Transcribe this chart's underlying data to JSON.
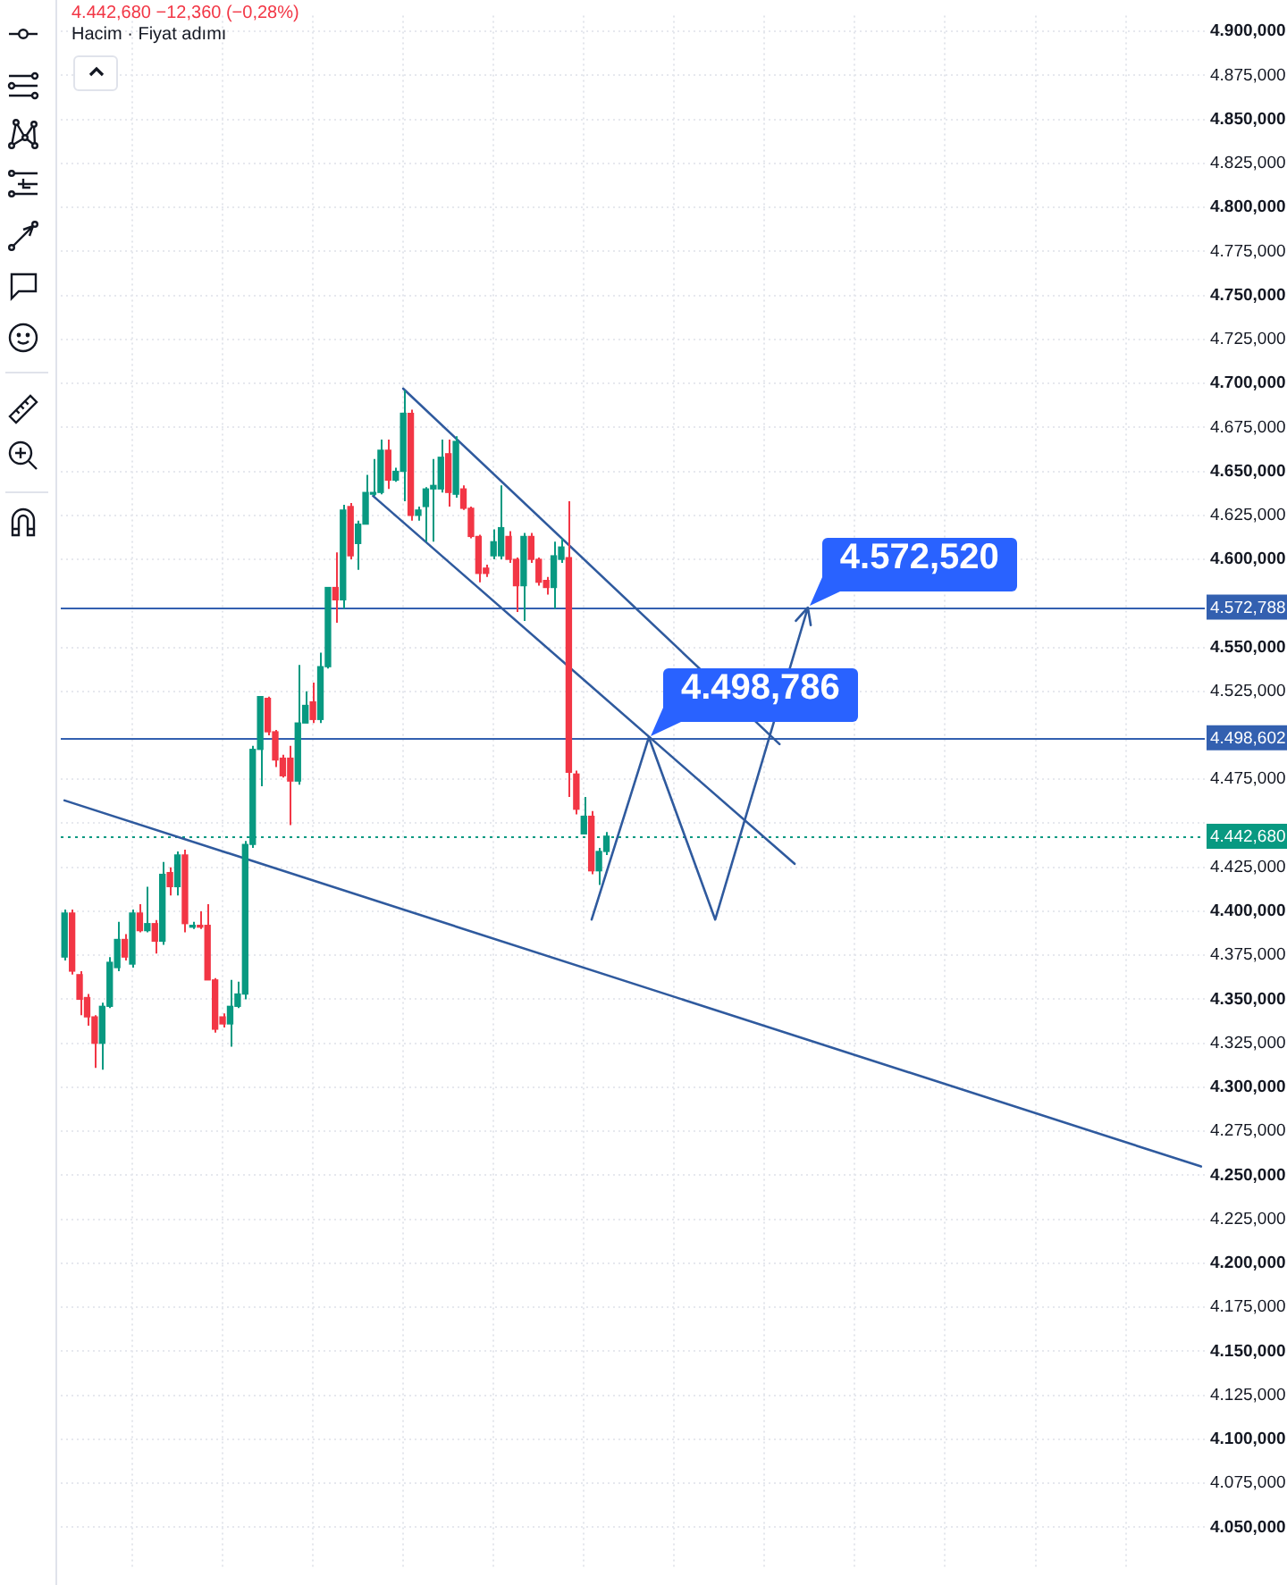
{
  "chart_data": {
    "type": "candlestick",
    "title": "4.442,680 −12,360 (−0,28%)",
    "subtitle": "Hacim · Fiyat adımı",
    "categories": [
      null,
      null,
      null,
      null,
      null,
      null,
      null,
      null,
      null,
      null,
      null,
      null,
      null,
      null,
      null,
      null,
      null,
      null,
      null,
      null,
      null,
      null,
      null,
      null,
      null,
      null,
      null,
      null,
      null,
      null,
      null,
      null,
      null,
      null,
      null,
      null,
      null,
      null,
      null,
      null,
      null,
      null,
      null,
      null,
      null,
      null,
      null,
      null,
      null,
      null,
      null,
      null,
      null,
      null,
      null,
      null,
      null,
      null,
      null,
      null,
      null,
      null,
      null,
      null,
      null,
      null,
      null,
      null,
      null,
      null,
      null,
      null,
      null,
      null,
      null,
      null,
      null,
      null,
      null,
      null,
      null,
      null,
      null,
      null,
      null,
      null,
      null,
      null,
      null,
      null,
      null,
      null,
      null,
      null,
      null,
      null,
      null,
      null,
      null,
      null,
      null,
      null,
      null,
      null,
      null,
      null,
      null,
      null,
      null,
      null,
      null,
      null,
      null,
      null,
      null,
      null,
      null,
      null,
      null,
      null,
      null,
      null,
      null,
      null,
      null,
      null,
      null,
      null,
      null,
      null,
      null,
      null,
      null,
      null,
      null,
      null,
      null,
      null,
      null,
      null,
      null,
      null,
      null,
      null,
      null,
      null,
      null,
      null,
      null,
      null,
      null,
      null
    ],
    "ohlc": [
      [
        4374,
        4401,
        4372,
        4399
      ],
      [
        4399,
        4401,
        4364,
        4366
      ],
      [
        4364,
        4366,
        4341,
        4350
      ],
      [
        4351,
        4353,
        4335,
        4340
      ],
      [
        4340,
        4341,
        4311,
        4325
      ],
      [
        4325,
        4348,
        4310,
        4346
      ],
      [
        4346,
        4374,
        4345,
        4371
      ],
      [
        4368,
        4394,
        4366,
        4384
      ],
      [
        4384,
        4387,
        4372,
        4374
      ],
      [
        4370,
        4401,
        4368,
        4399
      ],
      [
        4399,
        4404,
        4388,
        4389
      ],
      [
        4389,
        4414,
        4388,
        4393
      ],
      [
        4393,
        4395,
        4376,
        4383
      ],
      [
        4383,
        4428,
        4381,
        4421
      ],
      [
        4422,
        4425,
        4409,
        4414
      ],
      [
        4414,
        4434,
        4409,
        4432
      ],
      [
        4432,
        4435,
        4388,
        4393
      ],
      [
        4391,
        4394,
        4390,
        4392
      ],
      [
        4392,
        4400,
        4390,
        4391
      ],
      [
        4392,
        4404,
        4361,
        4361
      ],
      [
        4361,
        4362,
        4331,
        4333
      ],
      [
        4340,
        4342,
        4334,
        4336
      ],
      [
        4336,
        4361,
        4323,
        4346
      ],
      [
        4346,
        4360,
        4345,
        4353
      ],
      [
        4353,
        4440,
        4350,
        4438
      ],
      [
        4438,
        4494,
        4436,
        4492
      ],
      [
        4492,
        4522,
        4471,
        4522
      ],
      [
        4521,
        4522,
        4500,
        4502
      ],
      [
        4502,
        4503,
        4482,
        4486
      ],
      [
        4487,
        4489,
        4476,
        4477
      ],
      [
        4487,
        4494,
        4449,
        4474
      ],
      [
        4474,
        4540,
        4472,
        4507
      ],
      [
        4507,
        4525,
        4507,
        4517
      ],
      [
        4519,
        4530,
        4507,
        4509
      ],
      [
        4509,
        4547,
        4507,
        4539
      ],
      [
        4539,
        4584,
        4538,
        4584
      ],
      [
        4584,
        4604,
        4564,
        4577
      ],
      [
        4577,
        4631,
        4572,
        4628
      ],
      [
        4630,
        4632,
        4600,
        4602
      ],
      [
        4609,
        4622,
        4594,
        4620
      ],
      [
        4620,
        4648,
        4620,
        4638
      ],
      [
        4637,
        4657,
        4636,
        4638
      ],
      [
        4638,
        4668,
        4637,
        4662
      ],
      [
        4662,
        4668,
        4640,
        4645
      ],
      [
        4645,
        4652,
        4644,
        4650
      ],
      [
        4650,
        4696,
        4633,
        4683
      ],
      [
        4683,
        4685,
        4622,
        4625
      ],
      [
        4625,
        4630,
        4622,
        4628
      ],
      [
        4630,
        4641,
        4610,
        4640
      ],
      [
        4640,
        4657,
        4610,
        4642
      ],
      [
        4640,
        4668,
        4638,
        4658
      ],
      [
        4660,
        4668,
        4630,
        4638
      ],
      [
        4637,
        4670,
        4635,
        4667
      ],
      [
        4640,
        4642,
        4628,
        4629
      ],
      [
        4629,
        4630,
        4612,
        4613
      ],
      [
        4613,
        4614,
        4587,
        4592
      ],
      [
        4595,
        4597,
        4590,
        4592
      ],
      [
        4602,
        4617,
        4600,
        4610
      ],
      [
        4602,
        4642,
        4600,
        4618
      ],
      [
        4613,
        4616,
        4598,
        4600
      ],
      [
        4600,
        4601,
        4570,
        4585
      ],
      [
        4585,
        4615,
        4565,
        4613
      ],
      [
        4613,
        4615,
        4598,
        4600
      ],
      [
        4600,
        4601,
        4585,
        4587
      ],
      [
        4588,
        4590,
        4580,
        4584
      ],
      [
        4584,
        4610,
        4572,
        4602
      ],
      [
        4600,
        4612,
        4598,
        4607
      ],
      [
        4601,
        4633,
        4465,
        4479
      ],
      [
        4478,
        4480,
        4455,
        4458
      ],
      [
        4444,
        4465,
        4444,
        4454
      ],
      [
        4454,
        4457,
        4421,
        4423
      ],
      [
        4423,
        4436,
        4415,
        4434
      ],
      [
        4434,
        4445,
        4432,
        4442.68
      ],
      null,
      null,
      null,
      null,
      null,
      null,
      null,
      null,
      null,
      null,
      null,
      null,
      null,
      null,
      null,
      null,
      null,
      null,
      null,
      null,
      null,
      null,
      null,
      null,
      null,
      null,
      null,
      null,
      null,
      null,
      null,
      null,
      null,
      null,
      null,
      null,
      null,
      null,
      null,
      null,
      null,
      null,
      null,
      null,
      null,
      null,
      null,
      null,
      null,
      null,
      null,
      null,
      null,
      null,
      null,
      null,
      null,
      null,
      null,
      null,
      null,
      null,
      null,
      null,
      null,
      null,
      null,
      null,
      null,
      null,
      null,
      null,
      null,
      null,
      null,
      null,
      null,
      null,
      null
    ],
    "colors": [
      "#089981",
      "#f23645",
      "#f23645",
      "#f23645",
      "#f23645",
      "#089981",
      "#089981",
      "#089981",
      "#f23645",
      "#089981",
      "#f23645",
      "#089981",
      "#f23645",
      "#089981",
      "#f23645",
      "#089981",
      "#f23645",
      "#089981",
      "#f23645",
      "#f23645",
      "#f23645",
      "#f23645",
      "#089981",
      "#089981",
      "#089981",
      "#089981",
      "#089981",
      "#f23645",
      "#f23645",
      "#f23645",
      "#f23645",
      "#089981",
      "#089981",
      "#f23645",
      "#089981",
      "#089981",
      "#f23645",
      "#089981",
      "#f23645",
      "#089981",
      "#089981",
      "#089981",
      "#089981",
      "#f23645",
      "#089981",
      "#089981",
      "#f23645",
      "#089981",
      "#089981",
      "#089981",
      "#089981",
      "#f23645",
      "#089981",
      "#f23645",
      "#f23645",
      "#f23645",
      "#f23645",
      "#089981",
      "#089981",
      "#f23645",
      "#f23645",
      "#089981",
      "#f23645",
      "#f23645",
      "#f23645",
      "#089981",
      "#089981",
      "#f23645",
      "#f23645",
      "#089981",
      "#f23645",
      "#089981",
      "#089981",
      null,
      null,
      null,
      null,
      null,
      null,
      null,
      null,
      null,
      null,
      null,
      null,
      null,
      null,
      null,
      null,
      null,
      null,
      null,
      null,
      null,
      null,
      null,
      null,
      null,
      null,
      null,
      null,
      null,
      null,
      null,
      null,
      null,
      null,
      null,
      null,
      null,
      null,
      null,
      null,
      null,
      null,
      null,
      null,
      null,
      null,
      null,
      null,
      null,
      null,
      null,
      null,
      null,
      null,
      null,
      null,
      null,
      null,
      null,
      null,
      null,
      null,
      null,
      null,
      null,
      null,
      null,
      null,
      null,
      null,
      null,
      null,
      null,
      null,
      null,
      null,
      null,
      null,
      null
    ],
    "series": [
      {
        "type": "line",
        "color": "#2f5a9e",
        "values": [
          4463,
          null,
          null,
          null,
          null,
          null,
          null,
          null,
          null,
          null,
          null,
          null,
          null,
          null,
          null,
          null,
          null,
          null,
          null,
          null,
          null,
          null,
          null,
          null,
          null,
          null,
          null,
          null,
          null,
          null,
          null,
          null,
          null,
          null,
          null,
          null,
          null,
          null,
          null,
          null,
          null,
          null,
          null,
          null,
          null,
          null,
          null,
          null,
          null,
          null,
          null,
          null,
          null,
          null,
          null,
          null,
          null,
          null,
          null,
          null,
          null,
          null,
          null,
          null,
          null,
          null,
          null,
          null,
          null,
          null,
          null,
          null,
          null,
          null,
          null,
          null,
          null,
          null,
          null,
          null,
          null,
          null,
          null,
          null,
          null,
          null,
          null,
          null,
          null,
          null,
          null,
          null,
          null,
          null,
          null,
          null,
          null,
          null,
          null,
          null,
          null,
          null,
          null,
          null,
          null,
          null,
          null,
          null,
          null,
          null,
          null,
          null,
          null,
          null,
          null,
          null,
          null,
          null,
          null,
          null,
          null,
          null,
          null,
          null,
          null,
          null,
          null,
          null,
          null,
          null,
          null,
          null,
          null,
          null,
          null,
          null,
          null,
          null,
          null,
          null,
          null,
          null,
          null,
          null,
          null,
          null,
          null,
          null,
          null,
          null,
          null,
          4255
        ]
      },
      {
        "type": "line",
        "color": "#2f5a9e",
        "values": [
          null,
          null,
          null,
          null,
          null,
          null,
          null,
          null,
          null,
          null,
          null,
          null,
          null,
          null,
          null,
          null,
          null,
          null,
          null,
          null,
          null,
          null,
          null,
          null,
          null,
          null,
          null,
          null,
          null,
          null,
          null,
          null,
          null,
          null,
          null,
          null,
          null,
          null,
          null,
          null,
          null,
          null,
          null,
          null,
          null,
          4697,
          null,
          null,
          null,
          null,
          null,
          null,
          null,
          null,
          null,
          null,
          null,
          null,
          null,
          null,
          null,
          null,
          null,
          null,
          null,
          null,
          null,
          null,
          null,
          null,
          null,
          null,
          null,
          null,
          null,
          null,
          null,
          null,
          null,
          null,
          null,
          null,
          null,
          null,
          null,
          null,
          null,
          null,
          null,
          null,
          null,
          null,
          null,
          null,
          null,
          4495,
          null,
          null,
          null,
          null,
          null,
          null,
          null,
          null,
          null,
          null,
          null,
          null,
          null,
          null,
          null,
          null,
          null,
          null,
          null,
          null,
          null,
          null,
          null,
          null,
          null,
          null,
          null,
          null,
          null,
          null,
          null,
          null,
          null,
          null,
          null,
          null,
          null,
          null,
          null,
          null,
          null,
          null,
          null,
          null,
          null,
          null,
          null,
          null,
          null,
          null,
          null,
          null,
          null,
          null,
          null,
          null
        ]
      },
      {
        "type": "line",
        "color": "#2f5a9e",
        "values": [
          null,
          null,
          null,
          null,
          null,
          null,
          null,
          null,
          null,
          null,
          null,
          null,
          null,
          null,
          null,
          null,
          null,
          null,
          null,
          null,
          null,
          null,
          null,
          null,
          null,
          null,
          null,
          null,
          null,
          null,
          null,
          null,
          null,
          null,
          null,
          null,
          null,
          null,
          null,
          null,
          null,
          4636,
          null,
          null,
          null,
          null,
          null,
          null,
          null,
          null,
          null,
          null,
          null,
          null,
          null,
          null,
          null,
          null,
          null,
          null,
          null,
          null,
          null,
          null,
          null,
          null,
          null,
          null,
          null,
          null,
          null,
          null,
          null,
          null,
          null,
          null,
          null,
          null,
          null,
          null,
          null,
          null,
          null,
          null,
          null,
          null,
          null,
          null,
          null,
          null,
          null,
          null,
          null,
          null,
          null,
          null,
          null,
          4427,
          null,
          null,
          null,
          null,
          null,
          null,
          null,
          null,
          null,
          null,
          null,
          null,
          null,
          null,
          null,
          null,
          null,
          null,
          null,
          null,
          null,
          null,
          null,
          null,
          null,
          null,
          null,
          null,
          null,
          null,
          null,
          null,
          null,
          null,
          null,
          null,
          null,
          null,
          null,
          null,
          null,
          null,
          null,
          null,
          null,
          null,
          null,
          null,
          null,
          null,
          null,
          null,
          null,
          null
        ]
      }
    ],
    "ylim": [
      4026,
      4909
    ],
    "yticks": [
      {
        "value": 4050,
        "label": "4.050,000"
      },
      {
        "value": 4075,
        "label": "4.075,000"
      },
      {
        "value": 4100,
        "label": "4.100,000"
      },
      {
        "value": 4125,
        "label": "4.125,000"
      },
      {
        "value": 4150,
        "label": "4.150,000"
      },
      {
        "value": 4175,
        "label": "4.175,000"
      },
      {
        "value": 4200,
        "label": "4.200,000"
      },
      {
        "value": 4225,
        "label": "4.225,000"
      },
      {
        "value": 4250,
        "label": "4.250,000"
      },
      {
        "value": 4275,
        "label": "4.275,000"
      },
      {
        "value": 4300,
        "label": "4.300,000"
      },
      {
        "value": 4325,
        "label": "4.325,000"
      },
      {
        "value": 4350,
        "label": "4.350,000"
      },
      {
        "value": 4375,
        "label": "4.375,000"
      },
      {
        "value": 4400,
        "label": "4.400,000"
      },
      {
        "value": 4425,
        "label": "4.425,000"
      },
      {
        "value": 4450,
        "label": null
      },
      {
        "value": 4475,
        "label": "4.475,000"
      },
      {
        "value": 4525,
        "label": "4.525,000"
      },
      {
        "value": 4550,
        "label": "4.550,000"
      },
      {
        "value": 4600,
        "label": "4.600,000"
      },
      {
        "value": 4625,
        "label": "4.625,000"
      },
      {
        "value": 4650,
        "label": "4.650,000"
      },
      {
        "value": 4675,
        "label": "4.675,000"
      },
      {
        "value": 4700,
        "label": "4.700,000"
      },
      {
        "value": 4725,
        "label": "4.725,000"
      },
      {
        "value": 4750,
        "label": "4.750,000"
      },
      {
        "value": 4775,
        "label": "4.775,000"
      },
      {
        "value": 4800,
        "label": "4.800,000"
      },
      {
        "value": 4825,
        "label": "4.825,000"
      },
      {
        "value": 4850,
        "label": "4.850,000"
      },
      {
        "value": 4875,
        "label": "4.875,000"
      },
      {
        "value": 4900,
        "label": "4.900,000"
      }
    ],
    "ref_lines": [
      {
        "axis": "y",
        "value": 4572.788,
        "label": "4.572,788",
        "color": "#3360b0"
      },
      {
        "axis": "y",
        "value": 4498.602,
        "label": "4.498,602",
        "color": "#3360b0"
      },
      {
        "axis": "y",
        "value": 4442.68,
        "label": "4.442,680",
        "color": "#089981",
        "line_style": "dotted"
      }
    ],
    "annotations": [
      {
        "text": "4.498,786",
        "y": 4498.786
      },
      {
        "text": "4.572,520",
        "y": 4572.52
      }
    ],
    "grid": true,
    "tick_labels": "y"
  }
}
